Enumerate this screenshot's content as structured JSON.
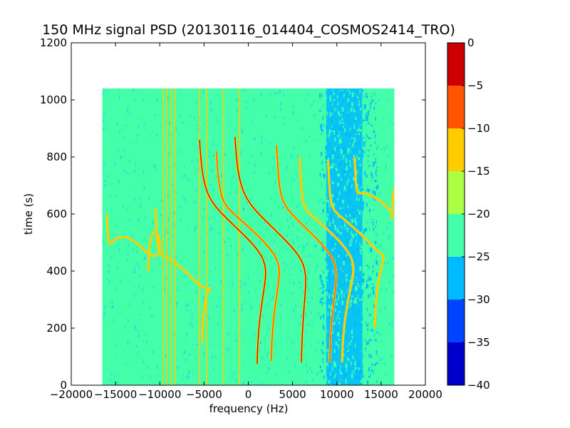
{
  "chart_data": {
    "type": "heatmap",
    "title": "150 MHz signal PSD (20130116_014404_COSMOS2414_TRO)",
    "xlabel": "frequency (Hz)",
    "ylabel": "time (s)",
    "xlim": [
      -20000,
      20000
    ],
    "ylim": [
      0,
      1200
    ],
    "x_ticks": [
      "−20000",
      "−15000",
      "−10000",
      "−5000",
      "0",
      "5000",
      "10000",
      "15000",
      "20000"
    ],
    "x_tick_values": [
      -20000,
      -15000,
      -10000,
      -5000,
      0,
      5000,
      10000,
      15000,
      20000
    ],
    "y_ticks": [
      "0",
      "200",
      "400",
      "600",
      "800",
      "1000",
      "1200"
    ],
    "y_tick_values": [
      0,
      200,
      400,
      600,
      800,
      1000,
      1200
    ],
    "data_extent": {
      "x": [
        -16500,
        16500
      ],
      "y": [
        0,
        1040
      ]
    },
    "background_level_db": -22.5,
    "colorbar": {
      "range": [
        -40,
        0
      ],
      "ticks": [
        "−40",
        "−35",
        "−30",
        "−25",
        "−20",
        "−15",
        "−10",
        "−5",
        "0"
      ],
      "tick_values": [
        -40,
        -35,
        -30,
        -25,
        -20,
        -15,
        -10,
        -5,
        0
      ],
      "bands": [
        {
          "from": -40,
          "to": -35,
          "color": "#0000cd"
        },
        {
          "from": -35,
          "to": -30,
          "color": "#0044ff"
        },
        {
          "from": -30,
          "to": -25,
          "color": "#00bbff"
        },
        {
          "from": -25,
          "to": -20,
          "color": "#44ffaa"
        },
        {
          "from": -20,
          "to": -15,
          "color": "#aaff44"
        },
        {
          "from": -15,
          "to": -10,
          "color": "#ffcc00"
        },
        {
          "from": -10,
          "to": -5,
          "color": "#ff5500"
        },
        {
          "from": -5,
          "to": 0,
          "color": "#cc0000"
        }
      ]
    },
    "low_power_region": {
      "x": [
        8000,
        14500
      ],
      "level_db": -27.5
    },
    "vertical_lines_hz": [
      -9600,
      -9200,
      -8700,
      -8300,
      -5500,
      -4700,
      -2800,
      -1000
    ],
    "doppler_tracks": [
      {
        "t_top": 860,
        "x_at_top": -5500,
        "t_mid": 520,
        "x_mid": -300,
        "t_bottom": 75,
        "x_at_bottom": 1000,
        "peak_level_db": -2.5
      },
      {
        "t_top": 820,
        "x_at_top": -3600,
        "t_mid": 520,
        "x_mid": 1200,
        "t_bottom": 85,
        "x_at_bottom": 2600,
        "peak_level_db": -7.5
      },
      {
        "t_top": 870,
        "x_at_top": -1500,
        "t_mid": 520,
        "x_mid": 3800,
        "t_bottom": 80,
        "x_at_bottom": 6000,
        "peak_level_db": -2.5
      },
      {
        "t_top": 840,
        "x_at_top": 3200,
        "t_mid": 520,
        "x_mid": 7500,
        "t_bottom": 80,
        "x_at_bottom": 9200,
        "peak_level_db": -7.5
      },
      {
        "t_top": 800,
        "x_at_top": 5800,
        "t_mid": 520,
        "x_mid": 9800,
        "t_bottom": 80,
        "x_at_bottom": 10600,
        "peak_level_db": -12.5
      },
      {
        "t_top": 790,
        "x_at_top": 9000,
        "t_mid": 520,
        "x_mid": 13000,
        "t_bottom": 200,
        "x_at_bottom": 14300,
        "peak_level_db": -12.5
      },
      {
        "t_top": 800,
        "x_at_top": 12000,
        "t_mid": 620,
        "x_mid": 15800,
        "t_bottom": 580,
        "x_at_bottom": 16200,
        "peak_level_db": -12.5
      },
      {
        "t_top": 600,
        "x_at_top": -16000,
        "t_mid": 480,
        "x_mid": -12000,
        "t_bottom": 400,
        "x_at_bottom": -11300,
        "peak_level_db": -12.5
      },
      {
        "t_top": 620,
        "x_at_top": -10500,
        "t_mid": 380,
        "x_mid": -6500,
        "t_bottom": 150,
        "x_at_bottom": -5200,
        "peak_level_db": -12.5
      }
    ]
  }
}
